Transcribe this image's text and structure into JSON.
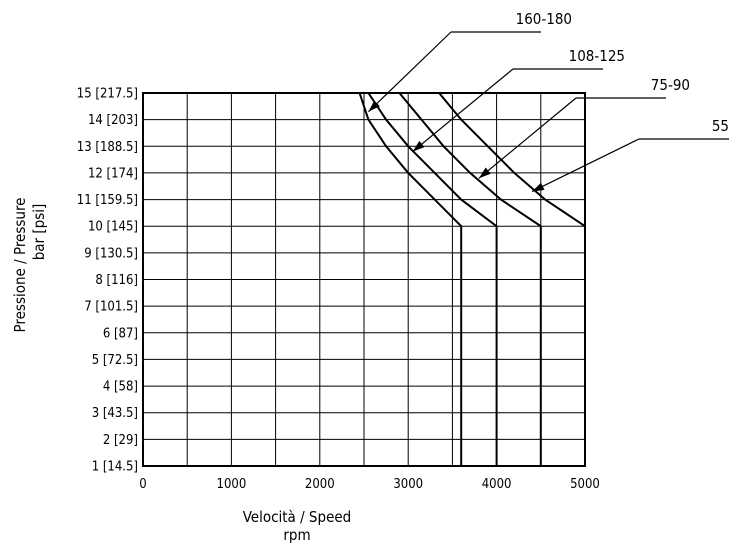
{
  "chart_data": {
    "type": "line",
    "xlabel": "Velocità / Speed",
    "xunit": "rpm",
    "ylabel": "Pressione / Pressure",
    "yunit": "bar [psi]",
    "xlim": [
      0,
      5000
    ],
    "ylim": [
      1,
      15
    ],
    "x_ticks": [
      {
        "value": 0,
        "label": "0"
      },
      {
        "value": 1000,
        "label": "1000"
      },
      {
        "value": 2000,
        "label": "2000"
      },
      {
        "value": 3000,
        "label": "3000"
      },
      {
        "value": 4000,
        "label": "4000"
      },
      {
        "value": 5000,
        "label": "5000"
      }
    ],
    "x_grid": [
      0,
      500,
      1000,
      1500,
      2000,
      2500,
      3000,
      3500,
      4000,
      4500,
      5000
    ],
    "y_ticks": [
      {
        "value": 1,
        "label": "1 [14.5]"
      },
      {
        "value": 2,
        "label": "2 [29]"
      },
      {
        "value": 3,
        "label": "3 [43.5]"
      },
      {
        "value": 4,
        "label": "4 [58]"
      },
      {
        "value": 5,
        "label": "5 [72.5]"
      },
      {
        "value": 6,
        "label": "6 [87]"
      },
      {
        "value": 7,
        "label": "7 [101.5]"
      },
      {
        "value": 8,
        "label": "8 [116]"
      },
      {
        "value": 9,
        "label": "9 [130.5]"
      },
      {
        "value": 10,
        "label": "10 [145]"
      },
      {
        "value": 11,
        "label": "11 [159.5]"
      },
      {
        "value": 12,
        "label": "12 [174]"
      },
      {
        "value": 13,
        "label": "13 [188.5]"
      },
      {
        "value": 14,
        "label": "14 [203]"
      },
      {
        "value": 15,
        "label": "15 [217.5]"
      }
    ],
    "grid": true,
    "legend": "callouts",
    "line_color": "#000000",
    "series": [
      {
        "name": "160-180",
        "points": [
          [
            0,
            1
          ],
          [
            3600,
            1
          ],
          [
            3600,
            10
          ],
          [
            3300,
            11
          ],
          [
            3000,
            12
          ],
          [
            2750,
            13
          ],
          [
            2550,
            14
          ],
          [
            2450,
            15
          ],
          [
            0,
            15
          ]
        ],
        "callout_at": [
          2550,
          14.3
        ]
      },
      {
        "name": "108-125",
        "points": [
          [
            0,
            1
          ],
          [
            4000,
            1
          ],
          [
            4000,
            10
          ],
          [
            3600,
            11
          ],
          [
            3300,
            12
          ],
          [
            3000,
            13
          ],
          [
            2750,
            14
          ],
          [
            2550,
            15
          ]
        ],
        "callout_at": [
          3050,
          12.8
        ]
      },
      {
        "name": "75-90",
        "points": [
          [
            0,
            1
          ],
          [
            4500,
            1
          ],
          [
            4500,
            10
          ],
          [
            4050,
            11
          ],
          [
            3700,
            12
          ],
          [
            3400,
            13
          ],
          [
            3150,
            14
          ],
          [
            2900,
            15
          ]
        ],
        "callout_at": [
          3800,
          11.8
        ]
      },
      {
        "name": "55",
        "points": [
          [
            0,
            1
          ],
          [
            5000,
            1
          ],
          [
            5000,
            10
          ],
          [
            4550,
            11
          ],
          [
            4200,
            12
          ],
          [
            3900,
            13
          ],
          [
            3600,
            14
          ],
          [
            3350,
            15
          ]
        ],
        "callout_at": [
          4400,
          11.3
        ]
      }
    ]
  }
}
